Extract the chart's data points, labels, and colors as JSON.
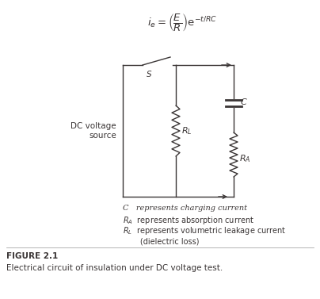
{
  "formula_text": "$i_e = \\left(\\dfrac{E}{R}\\right)\\mathrm{e}^{-t/RC}$",
  "dc_label": "DC voltage\nsource",
  "switch_label": "S",
  "RL_label": "$R_L$",
  "C_label": "$C$",
  "RA_label": "$R_A$",
  "legend_C": "C   represents charging current",
  "legend_RA": "$R_A$  represents absorption current",
  "legend_RL": "$R_L$  represents volumetric leakage current\n       (dielectric loss)",
  "figure_label": "FIGURE 2.1",
  "figure_caption": "Electrical circuit of insulation under DC voltage test.",
  "bg_color": "#ffffff",
  "line_color": "#3a3535",
  "text_color": "#3a3535"
}
